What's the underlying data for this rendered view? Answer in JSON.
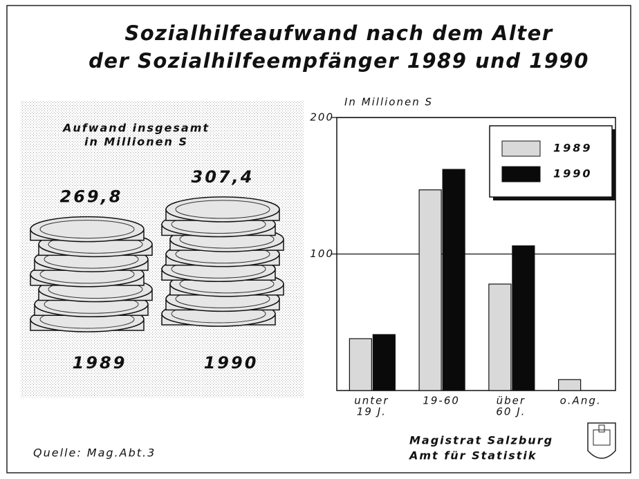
{
  "title": [
    "Sozialhilfeaufwand nach dem Alter",
    "der Sozialhilfeempfänger 1989 und 1990"
  ],
  "source": "Quelle: Mag.Abt.3",
  "publisher": [
    "Magistrat Salzburg",
    "Amt für Statistik"
  ],
  "chart_data": [
    {
      "type": "pictograph",
      "title": [
        "Aufwand insgesamt",
        "in Millionen S"
      ],
      "categories": [
        "1989",
        "1990"
      ],
      "values": [
        269.8,
        307.4
      ],
      "value_labels": [
        "269,8",
        "307,4"
      ],
      "color": "#e6e6e6"
    },
    {
      "type": "bar",
      "ylabel": "In Millionen S",
      "categories": [
        [
          "unter",
          "19 J."
        ],
        [
          "19-60"
        ],
        [
          "über",
          "60 J."
        ],
        [
          "o.Ang."
        ]
      ],
      "series": [
        {
          "name": "1989",
          "color": "#d9d9d9",
          "values": [
            38,
            147,
            78,
            8
          ]
        },
        {
          "name": "1990",
          "color": "#0a0a0a",
          "values": [
            41,
            162,
            106,
            null
          ]
        }
      ],
      "ylim": [
        0,
        200
      ],
      "yticks": [
        100,
        200
      ],
      "grid": true,
      "legend": "upper right"
    }
  ]
}
